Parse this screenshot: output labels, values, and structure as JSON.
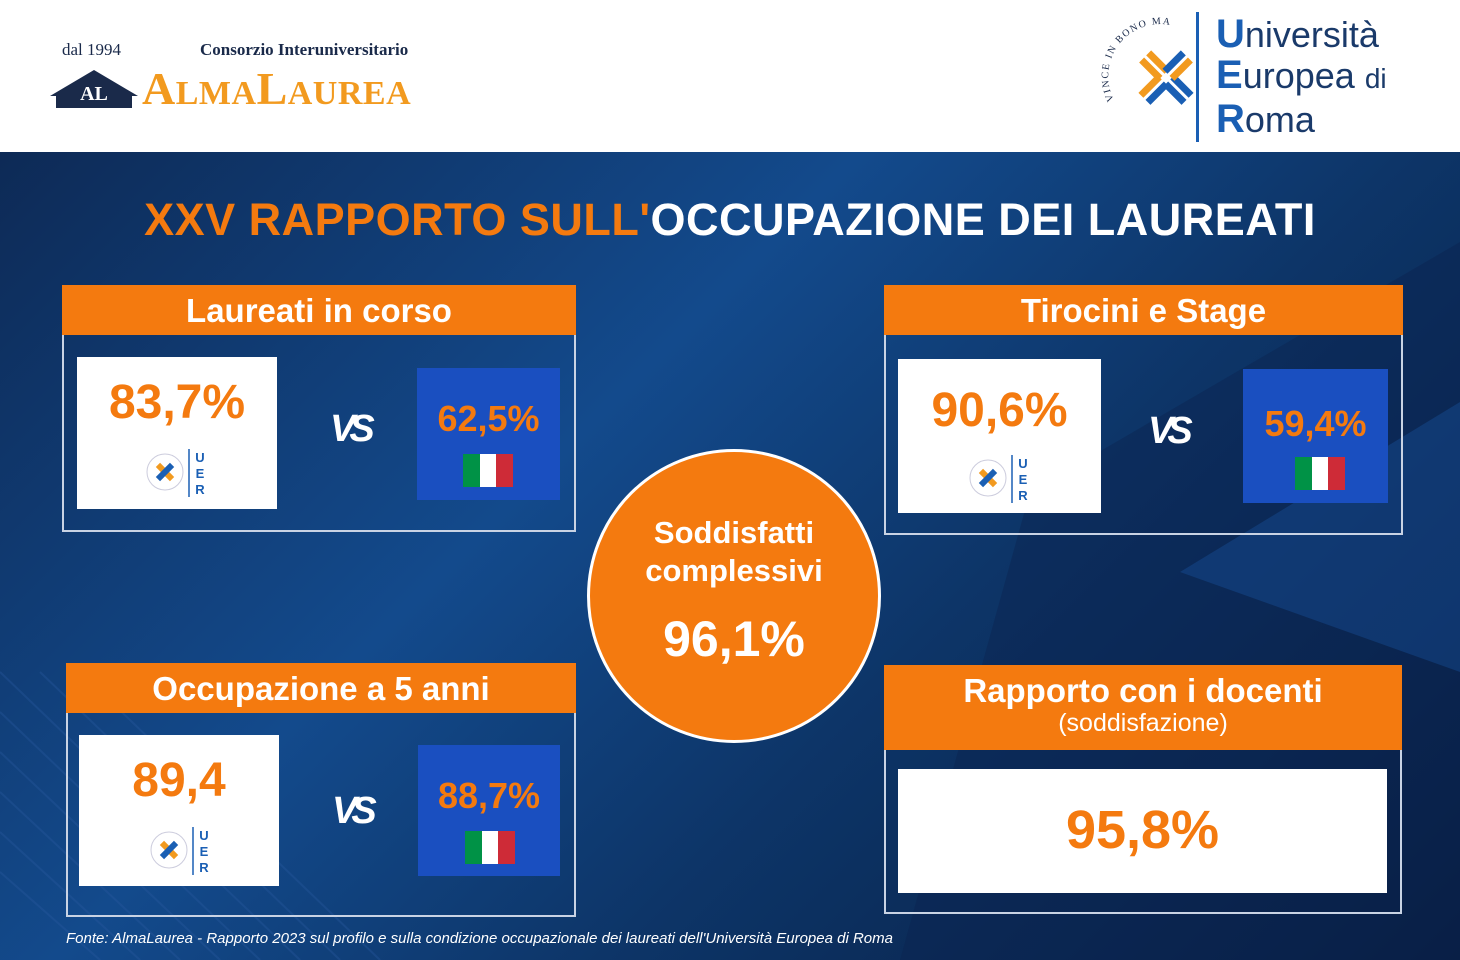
{
  "header": {
    "almalaurea": {
      "since": "dal 1994",
      "consorzio": "Consorzio Interuniversitario",
      "badge": "AL",
      "wordmark_a": "A",
      "wordmark_1": "LMA",
      "wordmark_l": "L",
      "wordmark_2": "AUREA"
    },
    "uer": {
      "seal_text": "VINCE IN BONO MALUM",
      "line1_cap": "U",
      "line1_rest": "niversità",
      "line2_cap": "E",
      "line2_rest": "uropea",
      "line2_di": "di",
      "line3_cap": "R",
      "line3_rest": "oma"
    }
  },
  "title": {
    "part1": "XXV RAPPORTO SULL'",
    "part2": "OCCUPAZIONE DEI LAUREATI"
  },
  "mini_logo": {
    "letters": [
      "U",
      "E",
      "R"
    ]
  },
  "vs_label": "VS",
  "panels": {
    "laureati_in_corso": {
      "title": "Laureati in corso",
      "uer_value": "83,7%",
      "italy_value": "62,5%"
    },
    "tirocini": {
      "title": "Tirocini e Stage",
      "uer_value": "90,6%",
      "italy_value": "59,4%"
    },
    "occupazione": {
      "title": "Occupazione a 5 anni",
      "uer_value": "89,4",
      "italy_value": "88,7%"
    },
    "docenti": {
      "title": "Rapporto con i docenti",
      "subtitle": "(soddisfazione)",
      "value": "95,8%"
    }
  },
  "center": {
    "label_line1": "Soddisfatti",
    "label_line2": "complessivi",
    "value": "96,1%"
  },
  "source": "Fonte: AlmaLaurea - Rapporto 2023 sul profilo e sulla condizione occupazionale dei laureati dell'Università Europea di Roma",
  "colors": {
    "orange": "#f47a0f",
    "navy": "#0d2a56",
    "italy_box": "#1a4fc0",
    "almalaurea_gold": "#f29a1f",
    "uer_blue": "#1a5fb4"
  }
}
